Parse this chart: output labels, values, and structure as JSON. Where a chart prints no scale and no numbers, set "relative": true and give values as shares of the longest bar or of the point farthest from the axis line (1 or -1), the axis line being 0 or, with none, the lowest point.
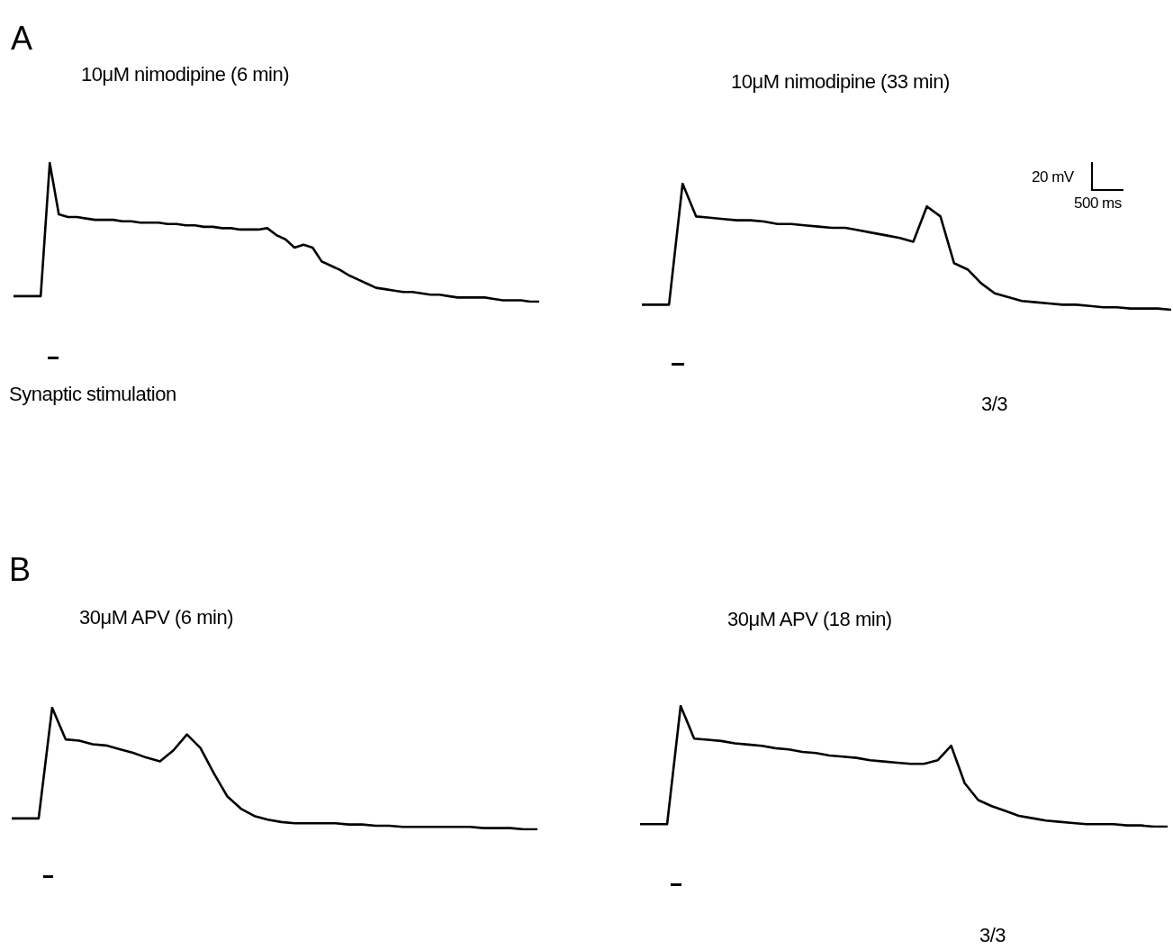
{
  "chart_data": [
    {
      "type": "line",
      "title": "10μM nimodipine (6 min)",
      "relative": true,
      "annotations": [
        "A",
        "Synaptic stimulation"
      ],
      "categories": [
        null,
        null,
        null,
        null,
        null,
        null,
        null,
        null,
        null,
        null,
        null,
        null,
        null,
        null,
        null,
        null,
        null,
        null,
        null,
        null,
        null,
        null,
        null,
        null,
        null,
        null,
        null,
        null,
        null,
        null,
        null,
        null,
        null,
        null,
        null,
        null,
        null,
        null,
        null,
        null,
        null,
        null,
        null,
        null,
        null,
        null,
        null,
        null,
        null,
        null,
        null,
        null,
        null,
        null,
        null,
        null,
        null,
        null,
        null
      ],
      "series": [
        {
          "color": "#000000",
          "values": [
            0.04,
            0.04,
            0.04,
            0.04,
            1,
            0.63,
            0.61,
            0.61,
            0.6,
            0.59,
            0.59,
            0.59,
            0.58,
            0.58,
            0.57,
            0.57,
            0.57,
            0.56,
            0.56,
            0.55,
            0.55,
            0.54,
            0.54,
            0.53,
            0.53,
            0.52,
            0.52,
            0.52,
            0.53,
            0.48,
            0.45,
            0.39,
            0.41,
            0.39,
            0.29,
            0.26,
            0.23,
            0.19,
            0.16,
            0.13,
            0.1,
            0.09,
            0.08,
            0.07,
            0.07,
            0.06,
            0.05,
            0.05,
            0.04,
            0.03,
            0.03,
            0.03,
            0.03,
            0.02,
            0.01,
            0.01,
            0.01,
            0,
            0
          ]
        }
      ]
    },
    {
      "type": "line",
      "title": "10μM nimodipine (33 min)",
      "relative": true,
      "annotations": [
        "20 mV",
        "500 ms",
        "3/3"
      ],
      "categories": [
        null,
        null,
        null,
        null,
        null,
        null,
        null,
        null,
        null,
        null,
        null,
        null,
        null,
        null,
        null,
        null,
        null,
        null,
        null,
        null,
        null,
        null,
        null,
        null,
        null,
        null,
        null,
        null,
        null,
        null,
        null,
        null,
        null,
        null,
        null,
        null,
        null,
        null,
        null,
        null
      ],
      "series": [
        {
          "color": "#000000",
          "values": [
            0.04,
            0.04,
            0.04,
            1,
            0.74,
            0.73,
            0.72,
            0.71,
            0.71,
            0.7,
            0.68,
            0.68,
            0.67,
            0.66,
            0.65,
            0.65,
            0.63,
            0.61,
            0.59,
            0.57,
            0.54,
            0.82,
            0.74,
            0.37,
            0.32,
            0.21,
            0.13,
            0.1,
            0.07,
            0.06,
            0.05,
            0.04,
            0.04,
            0.03,
            0.02,
            0.02,
            0.01,
            0.01,
            0.01,
            0
          ]
        }
      ]
    },
    {
      "type": "line",
      "title": "30μM APV (6 min)",
      "relative": true,
      "annotations": [
        "B"
      ],
      "categories": [
        null,
        null,
        null,
        null,
        null,
        null,
        null,
        null,
        null,
        null,
        null,
        null,
        null,
        null,
        null,
        null,
        null,
        null,
        null,
        null,
        null,
        null,
        null,
        null,
        null,
        null,
        null,
        null,
        null,
        null,
        null,
        null,
        null,
        null,
        null,
        null,
        null,
        null,
        null,
        null
      ],
      "series": [
        {
          "color": "#000000",
          "values": [
            0.09,
            0.09,
            0.09,
            1,
            0.74,
            0.73,
            0.7,
            0.69,
            0.66,
            0.63,
            0.59,
            0.56,
            0.65,
            0.78,
            0.67,
            0.46,
            0.27,
            0.17,
            0.11,
            0.08,
            0.06,
            0.05,
            0.05,
            0.05,
            0.05,
            0.04,
            0.04,
            0.03,
            0.03,
            0.02,
            0.02,
            0.02,
            0.02,
            0.02,
            0.02,
            0.01,
            0.01,
            0.01,
            0,
            0
          ]
        }
      ]
    },
    {
      "type": "line",
      "title": "30μM APV (18 min)",
      "relative": true,
      "annotations": [
        "3/3"
      ],
      "categories": [
        null,
        null,
        null,
        null,
        null,
        null,
        null,
        null,
        null,
        null,
        null,
        null,
        null,
        null,
        null,
        null,
        null,
        null,
        null,
        null,
        null,
        null,
        null,
        null,
        null,
        null,
        null,
        null,
        null,
        null,
        null,
        null,
        null,
        null,
        null,
        null,
        null,
        null,
        null,
        null
      ],
      "series": [
        {
          "color": "#000000",
          "values": [
            0.02,
            0.02,
            0.02,
            1,
            0.73,
            0.72,
            0.71,
            0.69,
            0.68,
            0.67,
            0.65,
            0.64,
            0.62,
            0.61,
            0.59,
            0.58,
            0.57,
            0.55,
            0.54,
            0.53,
            0.52,
            0.52,
            0.55,
            0.67,
            0.36,
            0.22,
            0.17,
            0.13,
            0.09,
            0.07,
            0.05,
            0.04,
            0.03,
            0.02,
            0.02,
            0.02,
            0.01,
            0.01,
            0,
            0
          ]
        }
      ]
    }
  ]
}
